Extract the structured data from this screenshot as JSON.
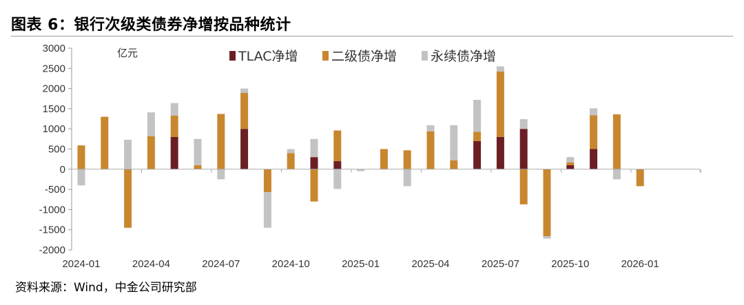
{
  "page": {
    "title": "图表 6：银行次级类债券净增按品种统计",
    "source": "资料来源：Wind，中金公司研究部"
  },
  "chart_data": {
    "type": "bar",
    "stacked": true,
    "unit_label": "亿元",
    "ylim": [
      -2000,
      3000
    ],
    "y_ticks": [
      3000,
      2500,
      2000,
      1500,
      1000,
      500,
      0,
      -500,
      -1000,
      -1500,
      -2000
    ],
    "x_tick_labels": [
      "2024-01",
      "2024-04",
      "2024-07",
      "2024-10",
      "2025-01",
      "2025-04",
      "2025-07",
      "2025-10",
      "2026-01"
    ],
    "legend_position": "top",
    "categories": [
      "2024-01",
      "2024-02",
      "2024-03",
      "2024-04",
      "2024-05",
      "2024-06",
      "2024-07",
      "2024-08",
      "2024-09",
      "2024-10",
      "2024-11",
      "2024-12",
      "2025-01",
      "2025-02",
      "2025-03",
      "2025-04",
      "2025-05",
      "2025-06",
      "2025-07",
      "2025-08",
      "2025-09",
      "2025-10",
      "2025-11",
      "2025-12",
      "2026-01"
    ],
    "series": [
      {
        "name": "TLAC净增",
        "color": "#6b1f24",
        "values": [
          0,
          0,
          0,
          0,
          800,
          0,
          0,
          1000,
          0,
          0,
          300,
          200,
          0,
          0,
          0,
          0,
          0,
          700,
          800,
          1000,
          0,
          100,
          500,
          0,
          0
        ]
      },
      {
        "name": "二级债净增",
        "color": "#c8872e",
        "values": [
          590,
          1300,
          -1450,
          820,
          530,
          100,
          1370,
          890,
          -570,
          400,
          -800,
          760,
          0,
          500,
          470,
          940,
          220,
          230,
          1620,
          -870,
          -1660,
          70,
          840,
          1360,
          -420
        ]
      },
      {
        "name": "永续债净增",
        "color": "#c3c3c3",
        "values": [
          -400,
          0,
          730,
          590,
          310,
          650,
          -250,
          110,
          -880,
          100,
          450,
          -490,
          -50,
          0,
          -420,
          150,
          870,
          790,
          130,
          240,
          -60,
          130,
          170,
          -250,
          0
        ]
      }
    ]
  }
}
